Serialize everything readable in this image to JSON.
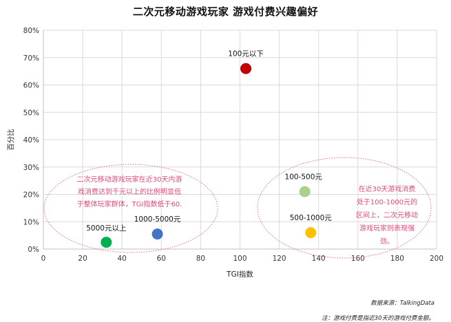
{
  "title": "二次元移动游戏玩家  游戏付费兴趣偏好",
  "source": "数据来源：TalkingData",
  "note": "注：游戏付费是指近30天的游戏付费金额。",
  "chart_data": {
    "type": "scatter",
    "xlabel": "TGI指数",
    "ylabel": "百分比",
    "xlim": [
      0,
      200
    ],
    "ylim": [
      0,
      80
    ],
    "xticks": [
      0,
      20,
      40,
      60,
      80,
      100,
      120,
      140,
      160,
      180,
      200
    ],
    "yticks": [
      0,
      10,
      20,
      30,
      40,
      50,
      60,
      70,
      80
    ],
    "y_unit": "%",
    "grid": true,
    "points": [
      {
        "label": "100元以下",
        "x": 103,
        "y": 66,
        "color": "#c00000"
      },
      {
        "label": "100-500元",
        "x": 133,
        "y": 21,
        "color": "#a9d18e"
      },
      {
        "label": "500-1000元",
        "x": 136,
        "y": 6,
        "color": "#ffc000"
      },
      {
        "label": "1000-5000元",
        "x": 58,
        "y": 5.5,
        "color": "#4472c4"
      },
      {
        "label": "5000元以上",
        "x": 32,
        "y": 2.5,
        "color": "#00b050"
      }
    ],
    "annotations": [
      {
        "lines": [
          "二次元移动游戏玩家在近30天内游",
          "戏消费达到千元以上的比例明显低",
          "于整体玩家群体，TGI指数低于60."
        ]
      },
      {
        "lines": [
          "在近30天游戏消费",
          "处于100-1000元的",
          "区间上，二次元移动",
          "游戏玩家则表现强",
          "劲。"
        ]
      }
    ]
  }
}
